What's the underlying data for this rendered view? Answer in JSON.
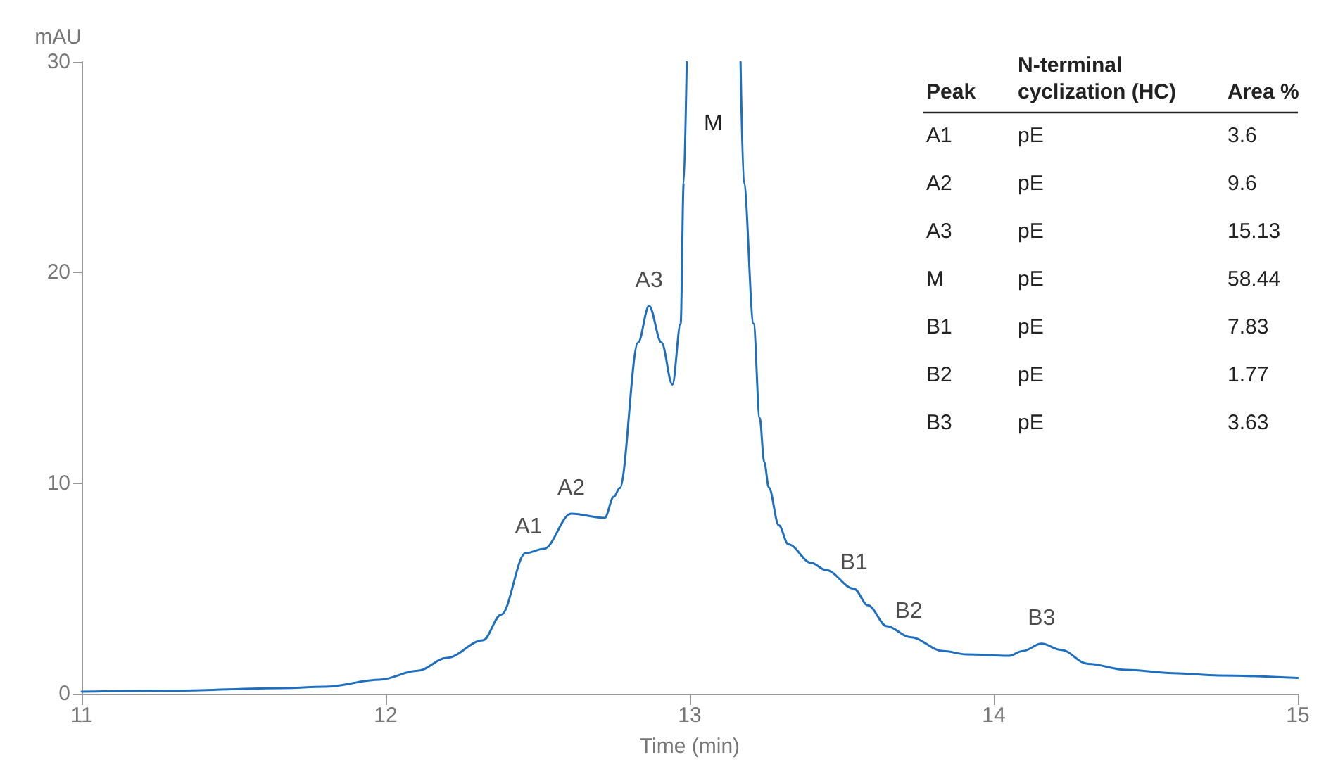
{
  "chart_data": {
    "type": "line",
    "xlabel": "Time (min)",
    "ylabel": "mAU",
    "xlim": [
      11,
      15
    ],
    "xticks": [
      11,
      12,
      13,
      14,
      15
    ],
    "ylim": [
      0,
      30
    ],
    "yticks": [
      0,
      10,
      20,
      30
    ],
    "grid": false,
    "marker": "none",
    "line_style": "solid",
    "x": [
      11.0,
      11.3,
      11.66,
      11.8,
      11.98,
      12.105,
      12.2,
      12.32,
      12.38,
      12.46,
      12.52,
      12.61,
      12.72,
      12.75,
      12.77,
      12.83,
      12.866,
      12.907,
      12.943,
      12.97,
      12.98,
      12.99,
      13.08,
      13.167,
      13.178,
      13.21,
      13.23,
      13.245,
      13.26,
      13.293,
      13.324,
      13.4,
      13.447,
      13.54,
      13.586,
      13.648,
      13.725,
      13.833,
      13.91,
      14.05,
      14.095,
      14.157,
      14.22,
      14.31,
      14.435,
      14.59,
      14.74,
      15.0
    ],
    "series": [
      {
        "color": "#1f6fc0",
        "values": [
          0.1,
          0.15,
          0.27,
          0.33,
          0.67,
          1.09,
          1.7,
          2.54,
          3.76,
          6.68,
          6.88,
          8.55,
          8.35,
          9.35,
          9.77,
          16.68,
          18.42,
          16.68,
          14.68,
          17.57,
          24.25,
          30,
          null,
          30,
          24.25,
          17.57,
          13.1,
          11.0,
          9.8,
          8.0,
          7.1,
          6.21,
          5.88,
          4.99,
          4.2,
          3.21,
          2.69,
          2.03,
          1.87,
          1.8,
          2.03,
          2.38,
          2.09,
          1.42,
          1.14,
          0.98,
          0.87,
          0.75
        ]
      }
    ],
    "annotations": [
      "Peak",
      "N-terminal\ncyclization (HC)",
      "Area %",
      "A1",
      "pE",
      "3.6",
      "A2",
      "pE",
      "9.6",
      "A3",
      "pE",
      "15.13",
      "M",
      "pE",
      "58.44",
      "B1",
      "pE",
      "7.83",
      "B2",
      "pE",
      "1.77",
      "B3",
      "pE",
      "3.63",
      "M",
      {
        "text": "A1",
        "x": 12.47,
        "y": 6.7
      },
      {
        "text": "A2",
        "x": 12.61,
        "y": 8.55
      },
      {
        "text": "A3",
        "x": 12.866,
        "y": 18.42
      },
      {
        "text": "B1",
        "x": 13.54,
        "y": 5
      },
      {
        "text": "B2",
        "x": 13.72,
        "y": 2.7
      },
      {
        "text": "B3",
        "x": 14.157,
        "y": 2.38
      }
    ]
  }
}
